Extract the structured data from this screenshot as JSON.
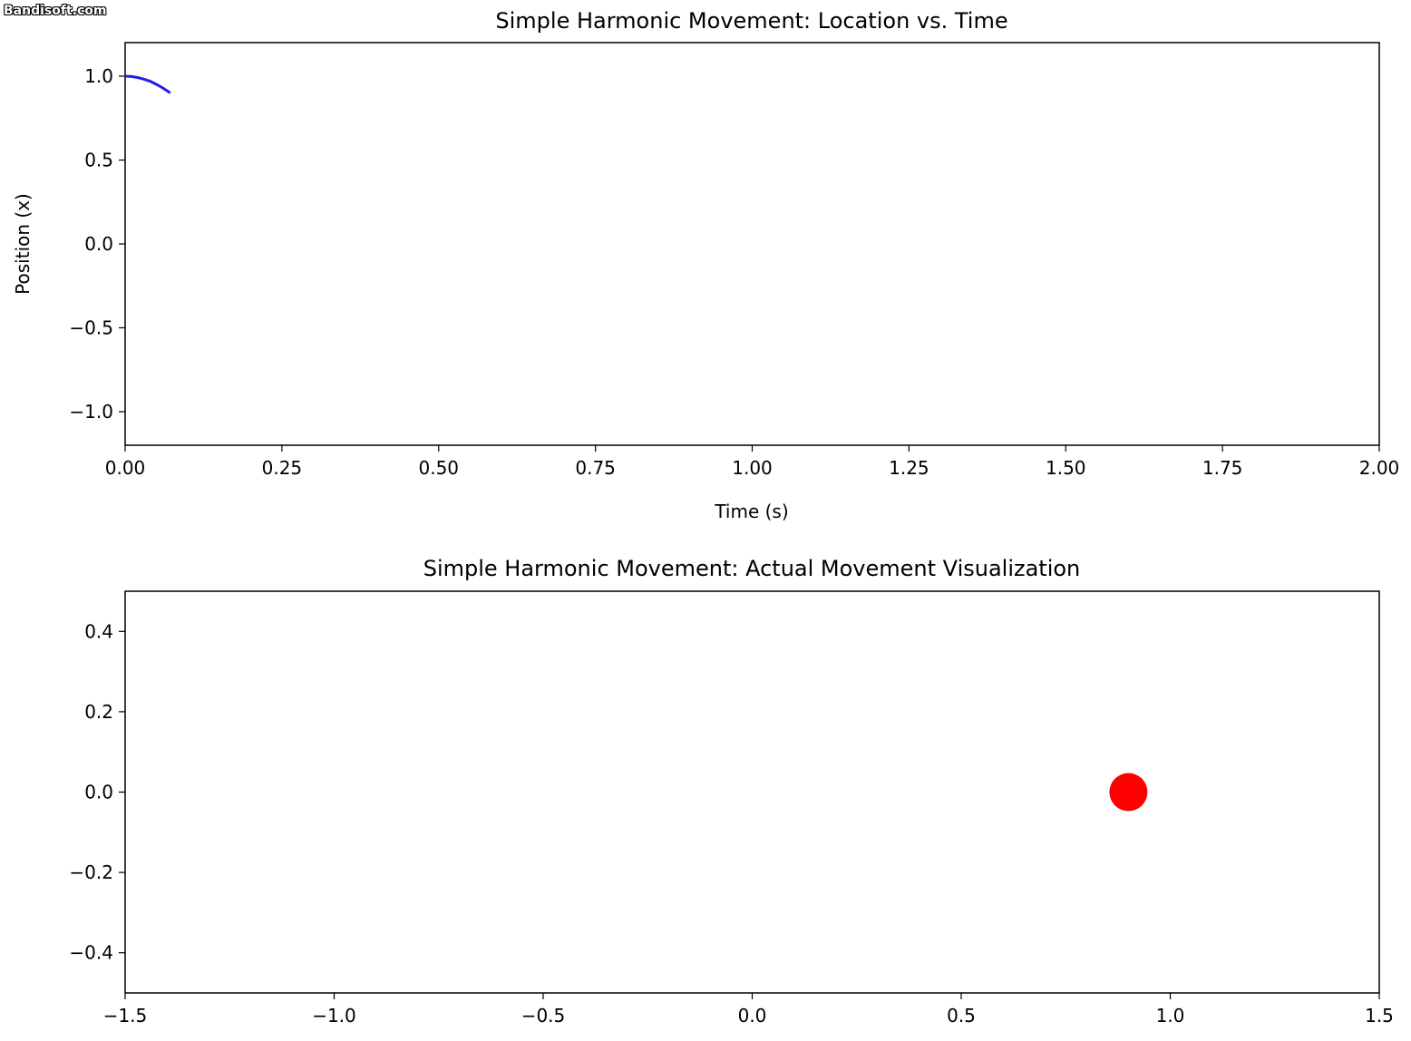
{
  "watermark": "Bandisoft.com",
  "colors": {
    "line": "#1f1fe6",
    "marker": "#ff0000"
  },
  "chart_data": [
    {
      "type": "line",
      "title": "Simple Harmonic Movement: Location vs. Time",
      "xlabel": "Time (s)",
      "ylabel": "Position (x)",
      "xlim": [
        0,
        2
      ],
      "ylim": [
        -1.2,
        1.2
      ],
      "xticks": [
        "0.00",
        "0.25",
        "0.50",
        "0.75",
        "1.00",
        "1.25",
        "1.50",
        "1.75",
        "2.00"
      ],
      "xtick_values": [
        0,
        0.25,
        0.5,
        0.75,
        1.0,
        1.25,
        1.5,
        1.75,
        2.0
      ],
      "yticks": [
        "1.0",
        "0.5",
        "0.0",
        "−0.5",
        "−1.0"
      ],
      "ytick_values": [
        1.0,
        0.5,
        0.0,
        -0.5,
        -1.0
      ],
      "grid": false,
      "series": [
        {
          "x": [
            0,
            0.01,
            0.02,
            0.03,
            0.04,
            0.05,
            0.06,
            0.072
          ],
          "y": [
            1.0,
            0.998,
            0.992,
            0.982,
            0.969,
            0.951,
            0.93,
            0.9
          ]
        }
      ]
    },
    {
      "type": "scatter",
      "title": "Simple Harmonic Movement: Actual Movement Visualization",
      "xlabel": "",
      "ylabel": "",
      "xlim": [
        -1.5,
        1.5
      ],
      "ylim": [
        -0.5,
        0.5
      ],
      "xticks": [
        "−1.5",
        "−1.0",
        "−0.5",
        "0.0",
        "0.5",
        "1.0",
        "1.5"
      ],
      "xtick_values": [
        -1.5,
        -1.0,
        -0.5,
        0.0,
        0.5,
        1.0,
        1.5
      ],
      "yticks": [
        "0.4",
        "0.2",
        "0.0",
        "−0.2",
        "−0.4"
      ],
      "ytick_values": [
        0.4,
        0.2,
        0.0,
        -0.2,
        -0.4
      ],
      "grid": false,
      "series": [
        {
          "x": [
            0.9
          ],
          "y": [
            0.0
          ]
        }
      ]
    }
  ]
}
